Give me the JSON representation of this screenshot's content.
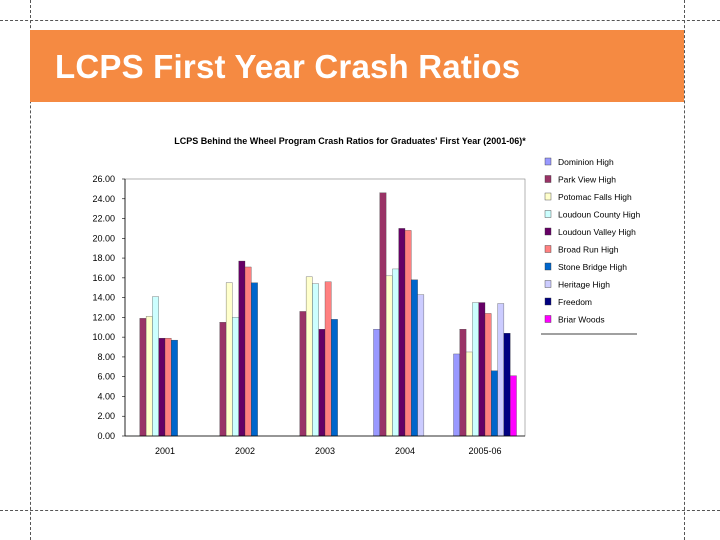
{
  "slide": {
    "title": "LCPS First Year Crash Ratios",
    "accent_color": "#f58a42"
  },
  "chart_data": {
    "type": "bar",
    "title": "LCPS Behind the Wheel Program Crash Ratios for Graduates' First Year (2001-06)*",
    "xlabel": "",
    "ylabel": "",
    "ylim": [
      0,
      26
    ],
    "y_ticks": [
      "0.00",
      "2.00",
      "4.00",
      "6.00",
      "8.00",
      "10.00",
      "12.00",
      "14.00",
      "16.00",
      "18.00",
      "20.00",
      "22.00",
      "24.00",
      "26.00"
    ],
    "categories": [
      "2001",
      "2002",
      "2003",
      "2004",
      "2005-06"
    ],
    "legend_position": "right",
    "series": [
      {
        "name": "Dominion High",
        "color": "#9999ff",
        "values": [
          null,
          null,
          null,
          10.8,
          8.3
        ]
      },
      {
        "name": "Park View High",
        "color": "#993366",
        "values": [
          11.9,
          11.5,
          12.6,
          24.6,
          10.8
        ]
      },
      {
        "name": "Potomac Falls High",
        "color": "#ffffcc",
        "values": [
          12.1,
          15.5,
          16.1,
          16.2,
          8.5
        ]
      },
      {
        "name": "Loudoun County High",
        "color": "#ccffff",
        "values": [
          14.1,
          12.0,
          15.4,
          16.9,
          13.5
        ]
      },
      {
        "name": "Loudoun Valley High",
        "color": "#660066",
        "values": [
          9.9,
          17.7,
          10.8,
          21.0,
          13.5
        ]
      },
      {
        "name": "Broad Run High",
        "color": "#ff8080",
        "values": [
          9.9,
          17.1,
          15.6,
          20.8,
          12.4
        ]
      },
      {
        "name": "Stone Bridge High",
        "color": "#0066cc",
        "values": [
          9.7,
          15.5,
          11.8,
          15.8,
          6.6
        ]
      },
      {
        "name": "Heritage High",
        "color": "#ccccff",
        "values": [
          null,
          null,
          null,
          14.3,
          13.4
        ]
      },
      {
        "name": "Freedom",
        "color": "#000080",
        "values": [
          null,
          null,
          null,
          null,
          10.4
        ]
      },
      {
        "name": "Briar Woods",
        "color": "#ff00ff",
        "values": [
          null,
          null,
          null,
          null,
          6.1
        ]
      }
    ]
  }
}
